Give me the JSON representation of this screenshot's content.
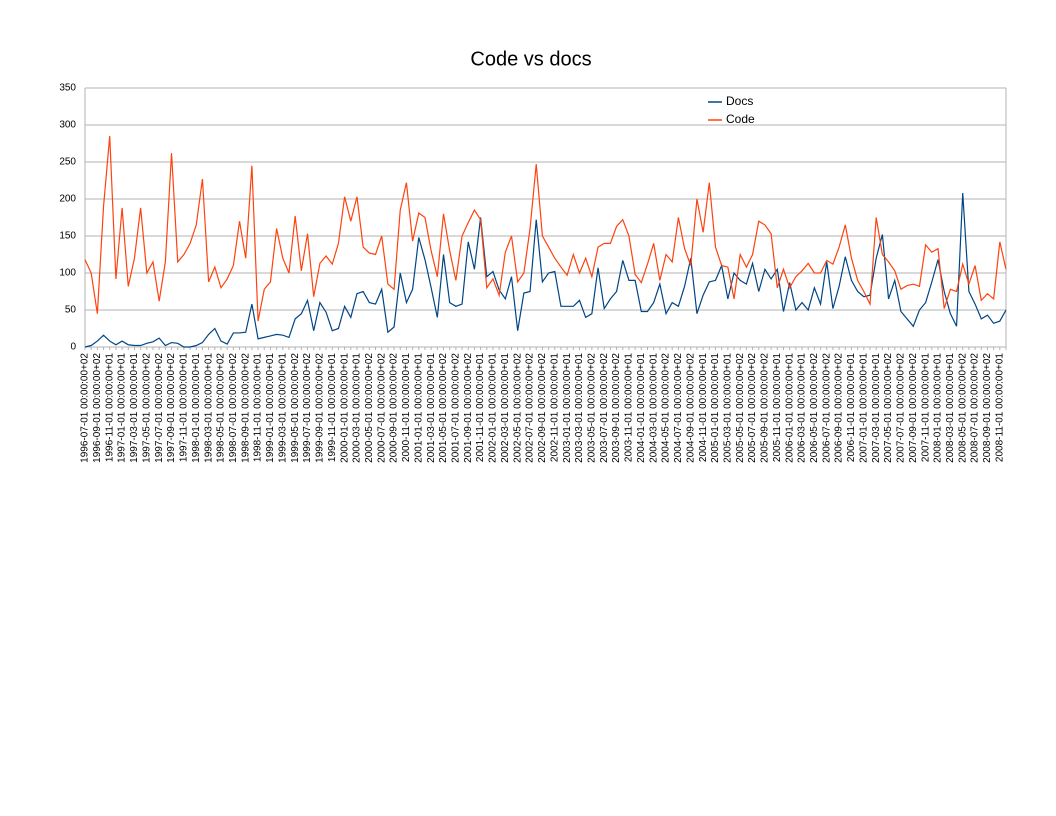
{
  "chart_data": {
    "type": "line",
    "title": "Code vs docs",
    "categories": [
      "1996-07-01 00:00:00+02",
      null,
      "1996-09-01 00:00:00+02",
      null,
      "1996-11-01 00:00:00+01",
      null,
      "1997-01-01 00:00:00+01",
      null,
      "1997-03-01 00:00:00+01",
      null,
      "1997-05-01 00:00:00+02",
      null,
      "1997-07-01 00:00:00+02",
      null,
      "1997-09-01 00:00:00+02",
      null,
      "1997-11-01 00:00:00+01",
      null,
      "1998-01-01 00:00:00+01",
      null,
      "1998-03-01 00:00:00+01",
      null,
      "1998-05-01 00:00:00+02",
      null,
      "1998-07-01 00:00:00+02",
      null,
      "1998-09-01 00:00:00+02",
      null,
      "1998-11-01 00:00:00+01",
      null,
      "1999-01-01 00:00:00+01",
      null,
      "1999-03-01 00:00:00+01",
      null,
      "1999-05-01 00:00:00+02",
      null,
      "1999-07-01 00:00:00+02",
      null,
      "1999-09-01 00:00:00+02",
      null,
      "1999-11-01 00:00:00+01",
      null,
      "2000-01-01 00:00:00+01",
      null,
      "2000-03-01 00:00:00+01",
      null,
      "2000-05-01 00:00:00+02",
      null,
      "2000-07-01 00:00:00+02",
      null,
      "2000-09-01 00:00:00+02",
      null,
      "2000-11-01 00:00:00+01",
      null,
      "2001-01-01 00:00:00+01",
      null,
      "2001-03-01 00:00:00+01",
      null,
      "2001-05-01 00:00:00+02",
      null,
      "2001-07-01 00:00:00+02",
      null,
      "2001-09-01 00:00:00+02",
      null,
      "2001-11-01 00:00:00+01",
      null,
      "2002-01-01 00:00:00+01",
      null,
      "2002-03-01 00:00:00+01",
      null,
      "2002-05-01 00:00:00+02",
      null,
      "2002-07-01 00:00:00+02",
      null,
      "2002-09-01 00:00:00+02",
      null,
      "2002-11-01 00:00:00+01",
      null,
      "2003-01-01 00:00:00+01",
      null,
      "2003-03-01 00:00:00+01",
      null,
      "2003-05-01 00:00:00+02",
      null,
      "2003-07-01 00:00:00+02",
      null,
      "2003-09-01 00:00:00+02",
      null,
      "2003-11-01 00:00:00+01",
      null,
      "2004-01-01 00:00:00+01",
      null,
      "2004-03-01 00:00:00+01",
      null,
      "2004-05-01 00:00:00+02",
      null,
      "2004-07-01 00:00:00+02",
      null,
      "2004-09-01 00:00:00+02",
      null,
      "2004-11-01 00:00:00+01",
      null,
      "2005-01-01 00:00:00+01",
      null,
      "2005-03-01 00:00:00+01",
      null,
      "2005-05-01 00:00:00+02",
      null,
      "2005-07-01 00:00:00+02",
      null,
      "2005-09-01 00:00:00+02",
      null,
      "2005-11-01 00:00:00+01",
      null,
      "2006-01-01 00:00:00+01",
      null,
      "2006-03-01 00:00:00+01",
      null,
      "2006-05-01 00:00:00+02",
      null,
      "2006-07-01 00:00:00+02",
      null,
      "2006-09-01 00:00:00+02",
      null,
      "2006-11-01 00:00:00+01",
      null,
      "2007-01-01 00:00:00+01",
      null,
      "2007-03-01 00:00:00+01",
      null,
      "2007-05-01 00:00:00+02",
      null,
      "2007-07-01 00:00:00+02",
      null,
      "2007-09-01 00:00:00+02",
      null,
      "2007-11-01 00:00:00+01",
      null,
      "2008-01-01 00:00:00+01",
      null,
      "2008-03-01 00:00:00+01",
      null,
      "2008-05-01 00:00:00+02",
      null,
      "2008-07-01 00:00:00+02",
      null,
      "2008-09-01 00:00:00+02",
      null,
      "2008-11-01 00:00:00+01",
      null
    ],
    "series": [
      {
        "name": "Docs",
        "color": "#004586",
        "values": [
          0,
          2,
          8,
          16,
          8,
          3,
          8,
          3,
          2,
          2,
          5,
          7,
          12,
          2,
          6,
          5,
          0,
          0,
          2,
          6,
          17,
          25,
          8,
          4,
          19,
          19,
          20,
          58,
          11,
          13,
          15,
          17,
          16,
          13,
          38,
          45,
          63,
          22,
          60,
          47,
          22,
          25,
          55,
          40,
          72,
          75,
          60,
          58,
          78,
          20,
          27,
          100,
          60,
          78,
          148,
          118,
          80,
          40,
          125,
          60,
          55,
          58,
          142,
          105,
          175,
          95,
          102,
          77,
          65,
          95,
          22,
          73,
          75,
          172,
          88,
          100,
          102,
          55,
          55,
          55,
          63,
          40,
          45,
          107,
          52,
          65,
          75,
          117,
          90,
          90,
          48,
          48,
          60,
          85,
          45,
          60,
          55,
          82,
          120,
          45,
          70,
          88,
          90,
          110,
          65,
          100,
          90,
          85,
          113,
          75,
          105,
          92,
          105,
          48,
          87,
          50,
          60,
          50,
          80,
          58,
          115,
          52,
          82,
          122,
          90,
          75,
          68,
          70,
          120,
          152,
          65,
          90,
          48,
          38,
          28,
          50,
          60,
          88,
          118,
          75,
          45,
          28,
          208,
          75,
          58,
          38,
          43,
          32,
          35,
          50
        ]
      },
      {
        "name": "Code",
        "color": "#ff420e",
        "values": [
          118,
          100,
          45,
          190,
          285,
          92,
          188,
          82,
          120,
          188,
          100,
          115,
          62,
          115,
          262,
          115,
          125,
          140,
          165,
          227,
          88,
          108,
          80,
          92,
          110,
          170,
          120,
          245,
          35,
          78,
          88,
          160,
          120,
          100,
          177,
          103,
          153,
          68,
          113,
          123,
          112,
          140,
          203,
          170,
          203,
          135,
          127,
          125,
          150,
          85,
          78,
          185,
          222,
          143,
          181,
          175,
          130,
          95,
          180,
          130,
          90,
          150,
          168,
          185,
          172,
          80,
          92,
          70,
          128,
          150,
          88,
          100,
          160,
          247,
          150,
          135,
          120,
          108,
          97,
          125,
          100,
          120,
          95,
          135,
          140,
          140,
          163,
          172,
          150,
          98,
          87,
          112,
          140,
          90,
          125,
          115,
          175,
          133,
          110,
          200,
          155,
          222,
          135,
          110,
          108,
          65,
          125,
          108,
          125,
          170,
          165,
          153,
          80,
          105,
          80,
          95,
          103,
          113,
          100,
          100,
          117,
          112,
          135,
          165,
          120,
          90,
          75,
          58,
          175,
          125,
          115,
          103,
          78,
          83,
          85,
          82,
          138,
          128,
          133,
          52,
          78,
          75,
          112,
          85,
          110,
          63,
          72,
          65,
          142,
          105
        ]
      }
    ],
    "ylim": [
      0,
      350
    ],
    "yticks": [
      0,
      50,
      100,
      150,
      200,
      250,
      300,
      350
    ],
    "grid": true,
    "legend": "top-right"
  }
}
